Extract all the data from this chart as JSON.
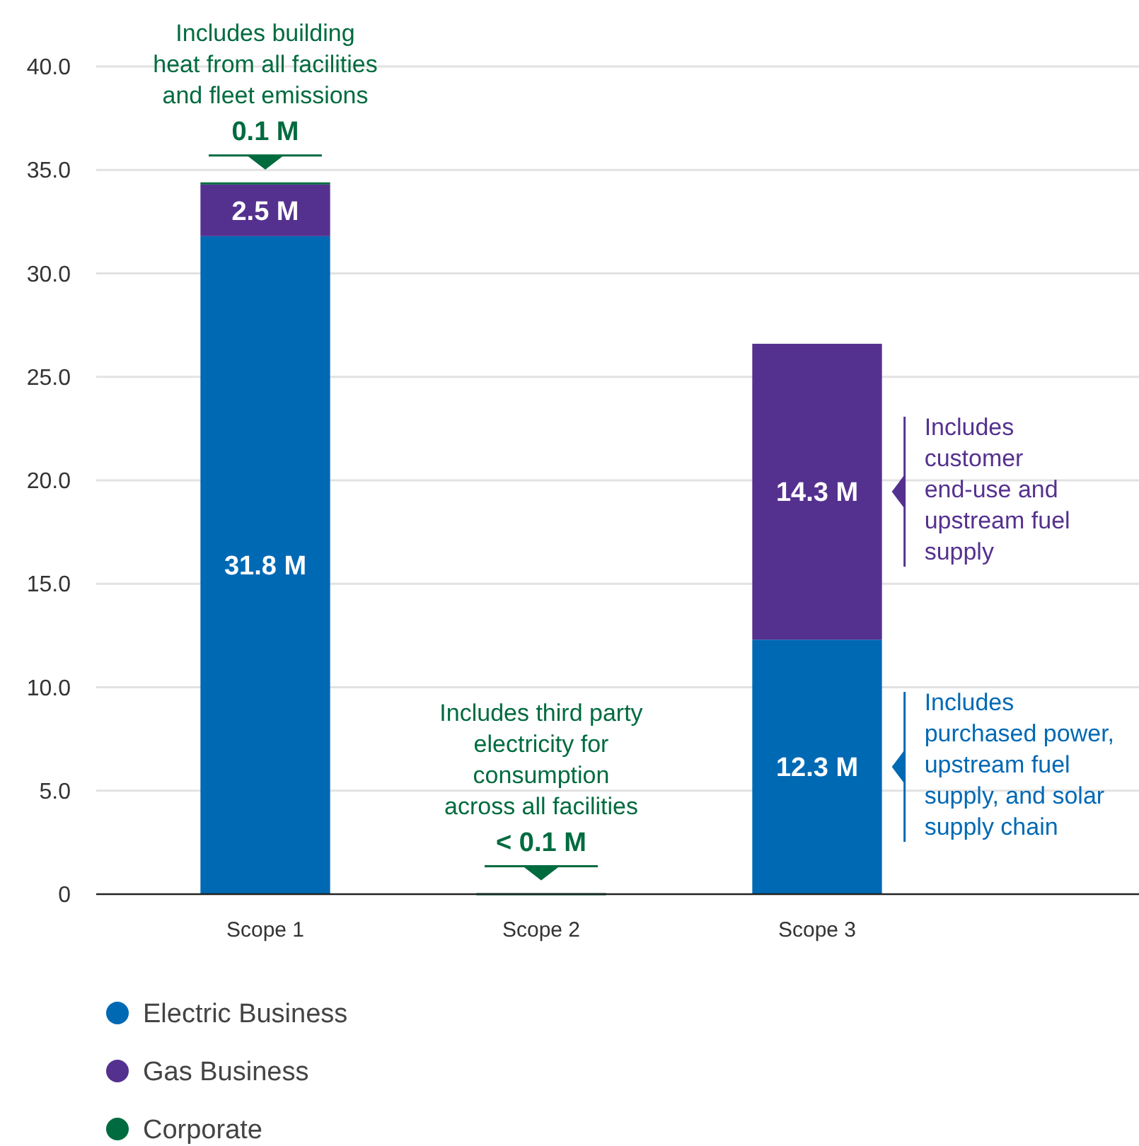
{
  "chart_data": {
    "type": "bar",
    "stacked": true,
    "categories": [
      "Scope 1",
      "Scope 2",
      "Scope 3"
    ],
    "series": [
      {
        "name": "Electric Business",
        "color": "#0069b4",
        "values": [
          31.8,
          null,
          12.3
        ],
        "value_labels": [
          "31.8 M",
          null,
          "12.3 M"
        ]
      },
      {
        "name": "Gas Business",
        "color": "#55318f",
        "values": [
          2.5,
          null,
          14.3
        ],
        "value_labels": [
          "2.5 M",
          null,
          "14.3 M"
        ]
      },
      {
        "name": "Corporate",
        "color": "#006b3f",
        "values": [
          0.1,
          0.05,
          null
        ],
        "value_labels": [
          "0.1 M",
          "< 0.1 M",
          null
        ]
      }
    ],
    "ylim": [
      0,
      40
    ],
    "yticks": [
      {
        "value": 0,
        "label": "0"
      },
      {
        "value": 5,
        "label": "5.0"
      },
      {
        "value": 10,
        "label": "10.0"
      },
      {
        "value": 15,
        "label": "15.0"
      },
      {
        "value": 20,
        "label": "20.0"
      },
      {
        "value": 25,
        "label": "25.0"
      },
      {
        "value": 30,
        "label": "30.0"
      },
      {
        "value": 35,
        "label": "35.0"
      },
      {
        "value": 40,
        "label": "40.0"
      }
    ],
    "grid": "y",
    "legend": "bottom",
    "annotations": [
      "Includes building\nheat from all facilities\nand fleet emissions",
      "Includes third party\nelectricity for\nconsumption\nacross all facilities",
      "Includes\ncustomer\nend-use and\nupstream fuel\nsupply",
      "Includes\npurchased power,\nupstream fuel\nsupply, and solar\nsupply chain"
    ]
  }
}
